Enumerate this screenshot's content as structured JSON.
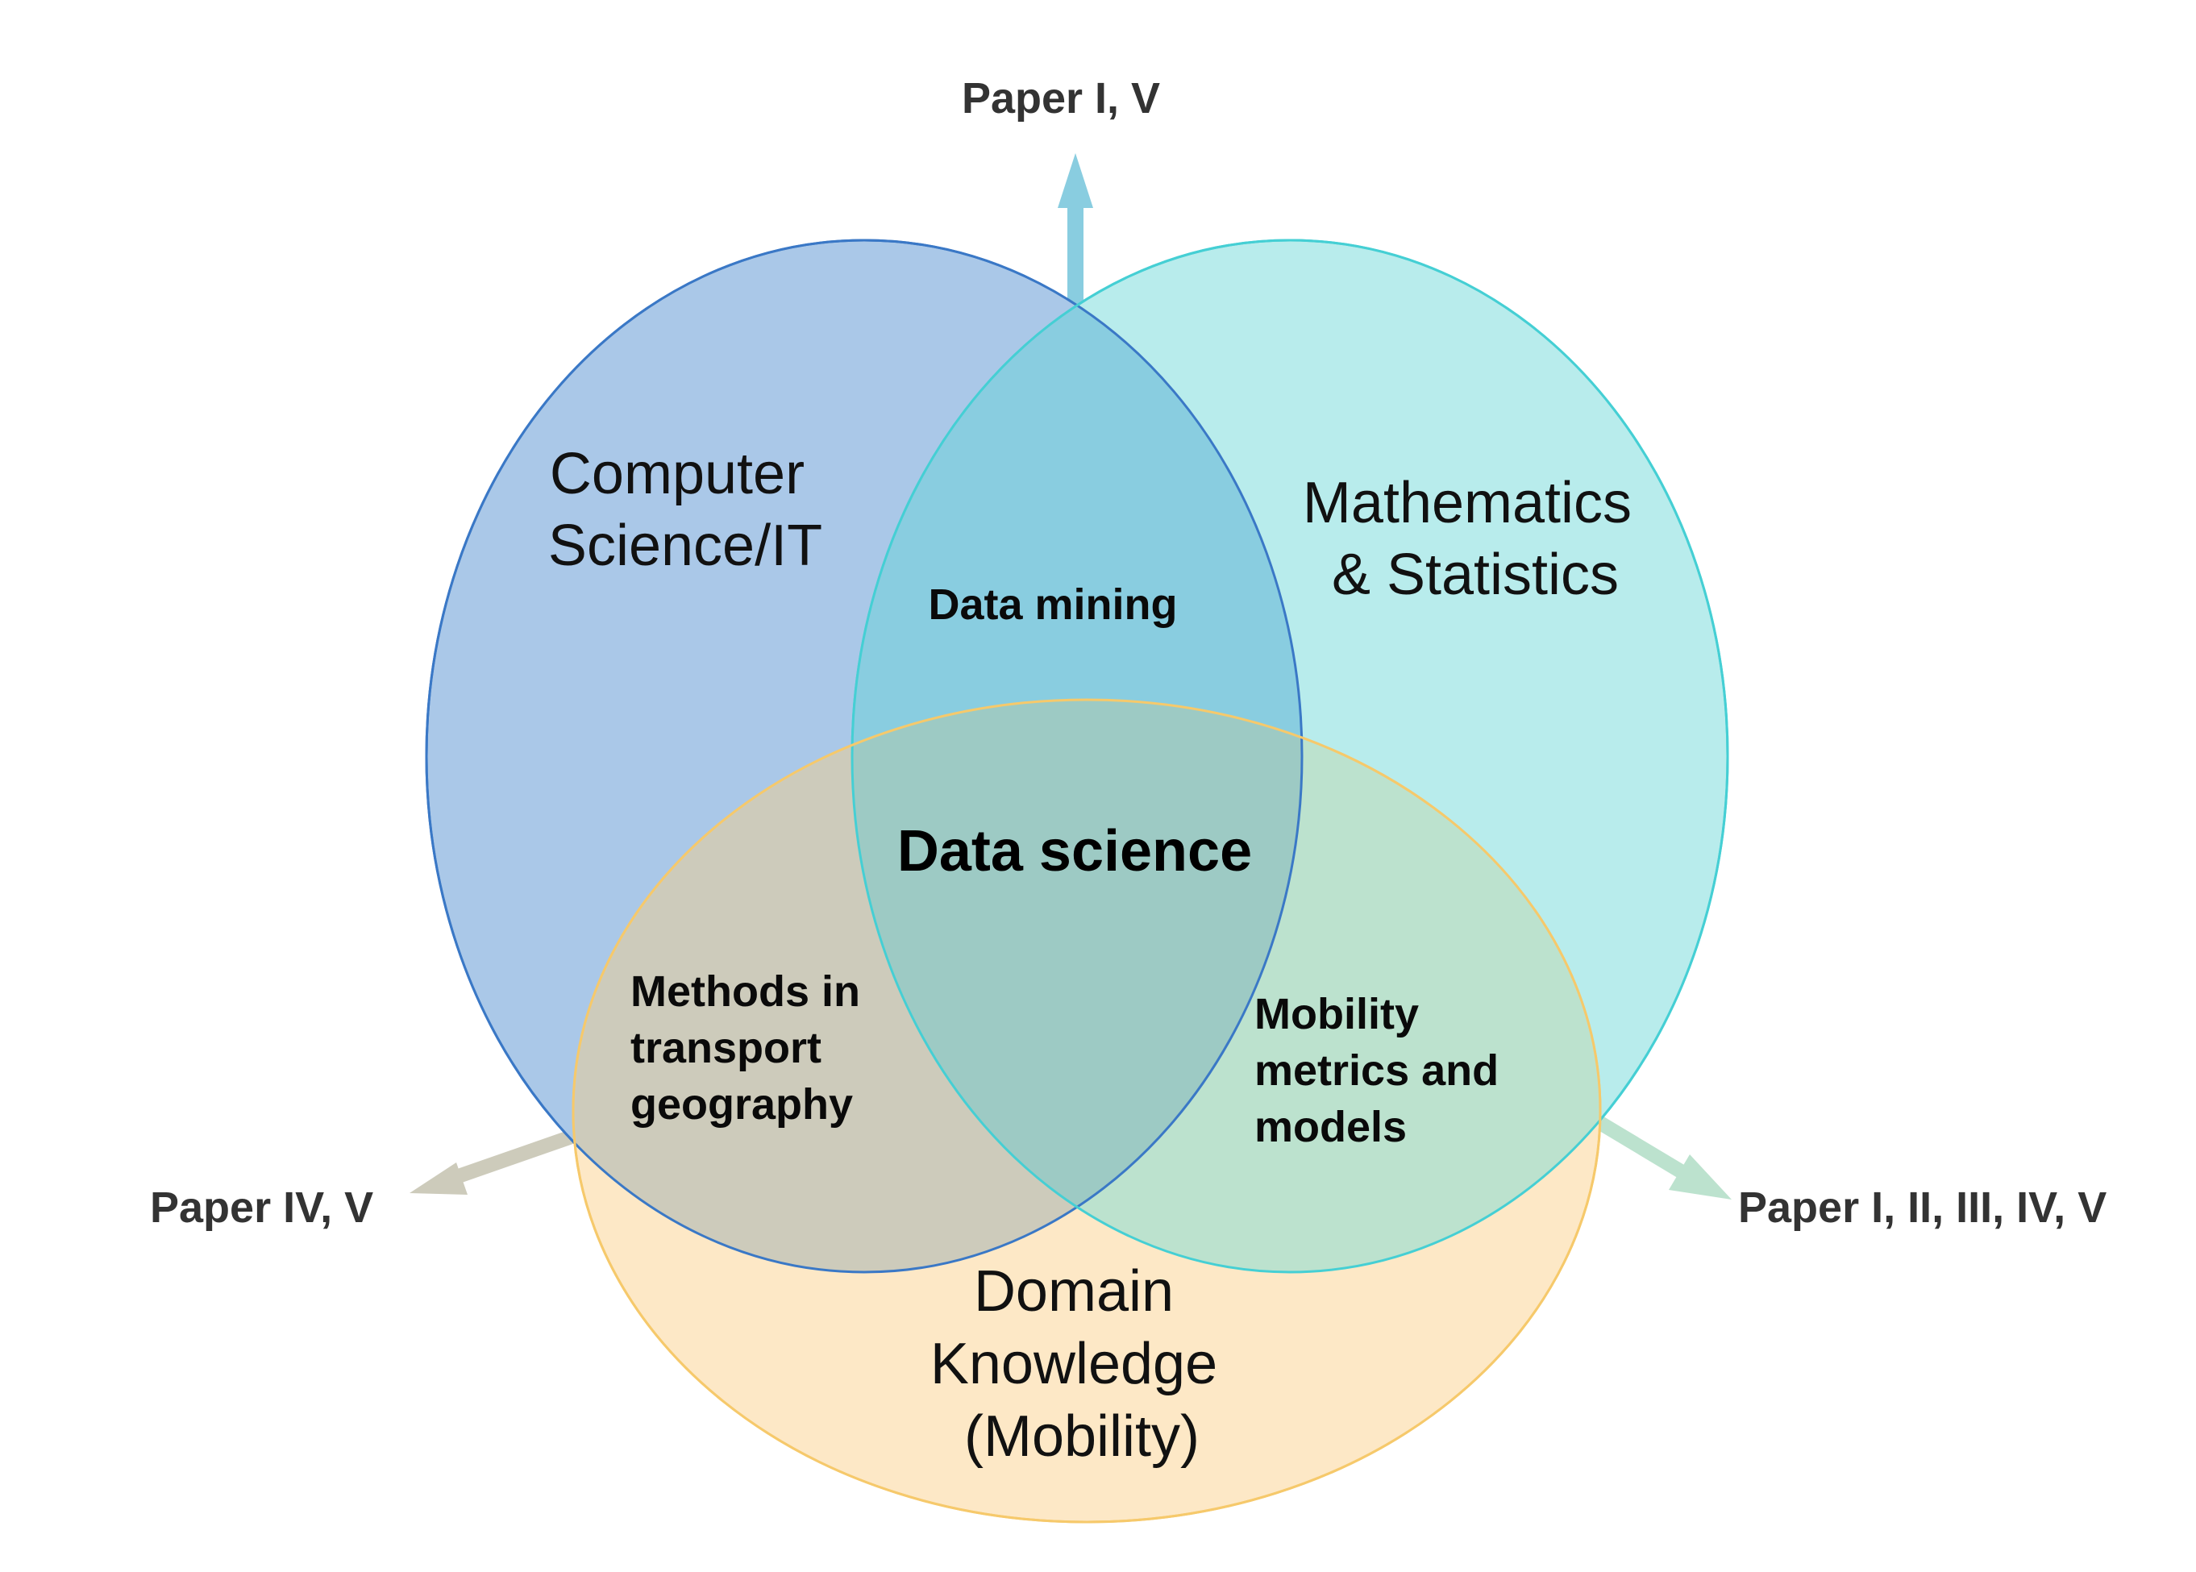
{
  "sets": {
    "computer_science": {
      "lines": [
        "Computer",
        "Science/IT"
      ],
      "fill": "#aac8e8",
      "stroke": "#3a78c6"
    },
    "mathematics": {
      "lines": [
        "Mathematics",
        "& Statistics"
      ],
      "fill": "#b8ecec",
      "stroke": "#45cfd4"
    },
    "domain": {
      "lines": [
        "Domain",
        "Knowledge",
        "(Mobility)"
      ],
      "fill": "#fde8c6",
      "stroke": "#f6c96b"
    }
  },
  "overlaps": {
    "data_mining": {
      "text": "Data mining",
      "fill": "#89cde0"
    },
    "transport_methods": {
      "lines": [
        "Methods in",
        "transport",
        "geography"
      ],
      "fill": "#cdcbbb"
    },
    "mobility_metrics": {
      "lines": [
        "Mobility",
        "metrics and",
        "models"
      ],
      "fill": "#bce2ce"
    },
    "data_science": {
      "text": "Data science",
      "fill": "#9dcac4"
    }
  },
  "arrows": {
    "top": {
      "label": "Paper I, V",
      "color": "#89cde0"
    },
    "left": {
      "label": "Paper IV, V",
      "color": "#cdcbbb"
    },
    "right": {
      "label": "Paper I, II, III, IV, V",
      "color": "#bce2ce"
    }
  }
}
